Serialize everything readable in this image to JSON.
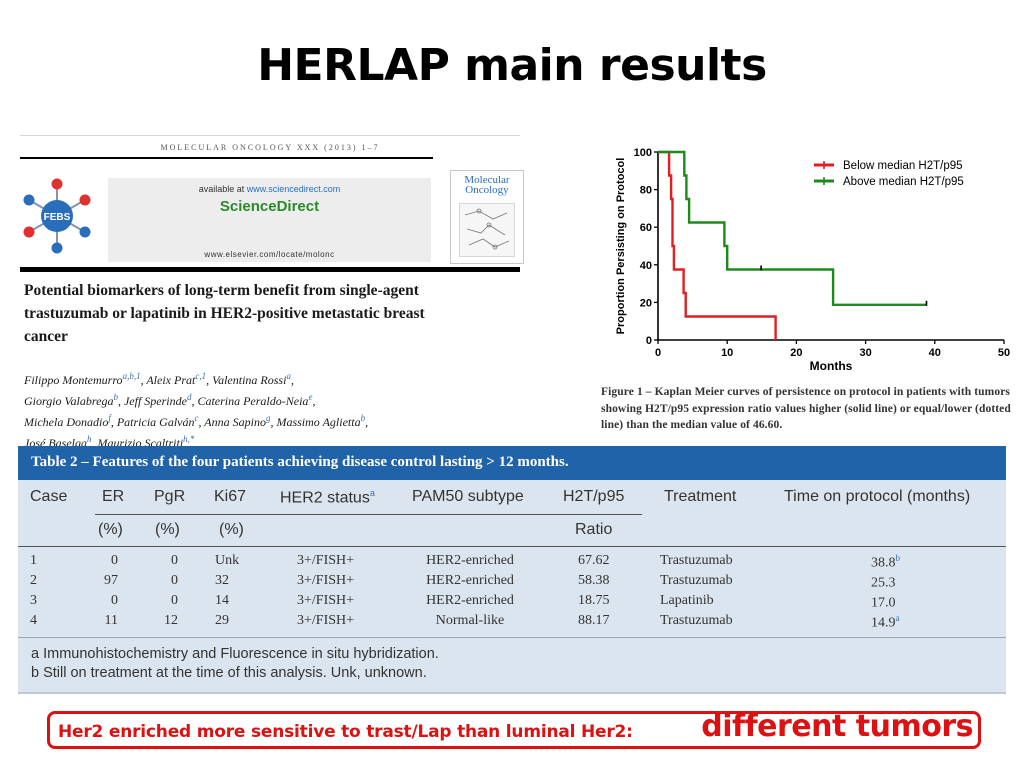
{
  "slide": {
    "title": "HERLAP main results",
    "callout": {
      "text": "Her2 enriched more sensitive to trast/Lap than luminal Her2:",
      "emphasis": "different tumors",
      "color": "#dd1111"
    }
  },
  "article": {
    "journal_line": "MOLECULAR ONCOLOGY XXX (2013) 1–7",
    "logo_text": "FEBS",
    "available_at": "available at",
    "available_at_url": "www.sciencedirect.com",
    "brand": "ScienceDirect",
    "publisher_url": "www.elsevier.com/locate/molonc",
    "cover_name": "Molecular Oncology",
    "title": "Potential biomarkers of long-term benefit from single-agent trastuzumab or lapatinib in HER2-positive metastatic breast cancer",
    "authors": [
      "Filippo Montemurro",
      "a,b,1",
      ", Aleix Prat",
      "c,1",
      ", Valentina Rossi",
      "a",
      ",",
      "Giorgio Valabrega",
      "b",
      ", Jeff Sperinde",
      "d",
      ", Caterina Peraldo-Neia",
      "e",
      ",",
      "Michela Donadio",
      "f",
      ", Patricia Galván",
      "c",
      ", Anna Sapino",
      "g",
      ", Massimo Aglietta",
      "b",
      ",",
      "José Baselga",
      "h",
      ", Maurizio Scaltriti",
      "h,*"
    ]
  },
  "chart_data": {
    "type": "line",
    "ylabel": "Proportion Persisting on Protocol",
    "xlabel": "Months",
    "xlim": [
      0,
      50
    ],
    "ylim": [
      0,
      100
    ],
    "xticks": [
      0,
      10,
      20,
      30,
      40,
      50
    ],
    "yticks": [
      0,
      20,
      40,
      60,
      80,
      100
    ],
    "legend_position": "top-right",
    "series": [
      {
        "name": "Below median H2T/p95",
        "color": "#e02020",
        "steps": [
          [
            0,
            100
          ],
          [
            1.6,
            100
          ],
          [
            1.6,
            87.5
          ],
          [
            1.9,
            87.5
          ],
          [
            1.9,
            75
          ],
          [
            2.1,
            75
          ],
          [
            2.1,
            50
          ],
          [
            2.3,
            50
          ],
          [
            2.3,
            37.5
          ],
          [
            3.7,
            37.5
          ],
          [
            3.7,
            25
          ],
          [
            4.0,
            25
          ],
          [
            4.0,
            12.5
          ],
          [
            17.0,
            12.5
          ],
          [
            17.0,
            0
          ]
        ],
        "censored": []
      },
      {
        "name": "Above median H2T/p95",
        "color": "#1e8a1e",
        "steps": [
          [
            0,
            100
          ],
          [
            3.8,
            100
          ],
          [
            3.8,
            87.5
          ],
          [
            4.1,
            87.5
          ],
          [
            4.1,
            75
          ],
          [
            4.5,
            75
          ],
          [
            4.5,
            62.5
          ],
          [
            9.6,
            62.5
          ],
          [
            9.6,
            50
          ],
          [
            10.0,
            50
          ],
          [
            10.0,
            37.5
          ],
          [
            25.3,
            37.5
          ],
          [
            25.3,
            18.75
          ],
          [
            38.8,
            18.75
          ]
        ],
        "censored": [
          [
            14.9,
            37.5
          ],
          [
            38.8,
            18.75
          ]
        ]
      }
    ]
  },
  "chart_caption": "Figure 1 – Kaplan Meier curves of persistence on protocol in patients with tumors showing H2T/p95 expression ratio values higher (solid line) or equal/lower (dotted line) than the median value of 46.60.",
  "table": {
    "caption": "Table 2 – Features of the four patients achieving disease control lasting > 12 months.",
    "headers": [
      "Case",
      "ER",
      "PgR",
      "Ki67",
      "HER2 status",
      "PAM50 subtype",
      "H2T/p95",
      "Treatment",
      "Time on protocol (months)"
    ],
    "header_sup_her2": "a",
    "subheaders": [
      "(%)",
      "(%)",
      "(%)",
      "Ratio"
    ],
    "rows": [
      [
        "1",
        "0",
        "0",
        "Unk",
        "3+/FISH+",
        "HER2-enriched",
        "67.62",
        "Trastuzumab",
        "38.8"
      ],
      [
        "2",
        "97",
        "0",
        "32",
        "3+/FISH+",
        "HER2-enriched",
        "58.38",
        "Trastuzumab",
        "25.3"
      ],
      [
        "3",
        "0",
        "0",
        "14",
        "3+/FISH+",
        "HER2-enriched",
        "18.75",
        "Lapatinib",
        "17.0"
      ],
      [
        "4",
        "11",
        "12",
        "29",
        "3+/FISH+",
        "Normal-like",
        "88.17",
        "Trastuzumab",
        "14.9"
      ]
    ],
    "row_sups": [
      "b",
      "",
      "",
      "a"
    ],
    "footnotes": [
      "a  Immunohistochemistry and Fluorescence in situ hybridization.",
      "b  Still on treatment at the time of this analysis. Unk, unknown."
    ]
  }
}
